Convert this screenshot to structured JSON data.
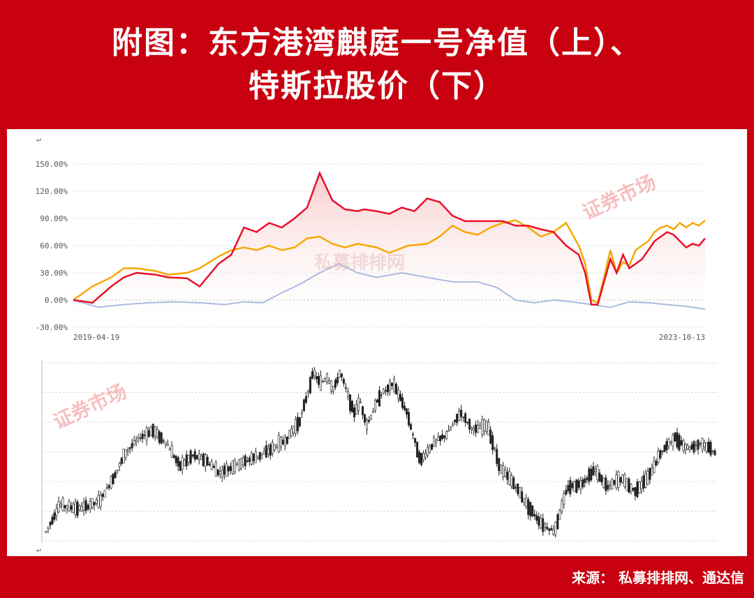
{
  "header": {
    "title_line1": "附图：东方港湾麒庭一号净值（上）、",
    "title_line2": "特斯拉股价（下）"
  },
  "footer": {
    "source": "来源： 私募排排网、通达信"
  },
  "watermarks": {
    "stamp": "证券市场",
    "site": "私募排排网"
  },
  "colors": {
    "frame": "#c8000f",
    "fund": "#e8102a",
    "benchmark": "#f5a800",
    "index": "#aabbe0",
    "candles": "#222222",
    "gridline": "#dddddd"
  },
  "chart_data": [
    {
      "type": "line",
      "x_start": "2019-04-19",
      "x_end": "2023-10-13",
      "x_tick_labels": [
        "2019-04-19",
        "2023-10-13"
      ],
      "y_tick_labels": [
        "150.00%",
        "120.00%",
        "90.00%",
        "60.00%",
        "30.00%",
        "0.00%",
        "-30.00%"
      ],
      "ylim": [
        -30,
        150
      ],
      "grid": true,
      "series": [
        {
          "role": "fund",
          "x": [
            0,
            0.03,
            0.06,
            0.08,
            0.1,
            0.13,
            0.15,
            0.18,
            0.2,
            0.23,
            0.25,
            0.27,
            0.29,
            0.31,
            0.33,
            0.35,
            0.37,
            0.39,
            0.41,
            0.43,
            0.45,
            0.46,
            0.48,
            0.5,
            0.52,
            0.54,
            0.56,
            0.58,
            0.6,
            0.62,
            0.64,
            0.66,
            0.68,
            0.7,
            0.72,
            0.74,
            0.76,
            0.78,
            0.8,
            0.81,
            0.82,
            0.83,
            0.84,
            0.85,
            0.86,
            0.87,
            0.88,
            0.89,
            0.9,
            0.91,
            0.92,
            0.93,
            0.94,
            0.95,
            0.96,
            0.97,
            0.98,
            0.99,
            1.0
          ],
          "values": [
            0,
            -3,
            15,
            25,
            30,
            28,
            25,
            24,
            15,
            40,
            50,
            80,
            75,
            85,
            80,
            90,
            102,
            140,
            110,
            100,
            98,
            100,
            98,
            95,
            102,
            98,
            112,
            108,
            93,
            87,
            87,
            87,
            87,
            82,
            82,
            78,
            75,
            60,
            50,
            30,
            -5,
            -5,
            20,
            45,
            30,
            50,
            35,
            40,
            45,
            55,
            65,
            70,
            75,
            72,
            65,
            58,
            62,
            60,
            68
          ]
        },
        {
          "role": "benchmark",
          "x": [
            0,
            0.03,
            0.06,
            0.08,
            0.1,
            0.13,
            0.15,
            0.18,
            0.2,
            0.23,
            0.25,
            0.27,
            0.29,
            0.31,
            0.33,
            0.35,
            0.37,
            0.39,
            0.41,
            0.43,
            0.45,
            0.48,
            0.5,
            0.53,
            0.56,
            0.58,
            0.6,
            0.62,
            0.64,
            0.66,
            0.68,
            0.7,
            0.72,
            0.74,
            0.76,
            0.78,
            0.8,
            0.81,
            0.82,
            0.83,
            0.84,
            0.85,
            0.86,
            0.87,
            0.88,
            0.89,
            0.9,
            0.91,
            0.92,
            0.93,
            0.94,
            0.95,
            0.96,
            0.97,
            0.98,
            0.99,
            1.0
          ],
          "values": [
            0,
            15,
            25,
            35,
            35,
            32,
            28,
            30,
            35,
            48,
            55,
            58,
            55,
            60,
            55,
            58,
            68,
            70,
            62,
            58,
            62,
            58,
            52,
            60,
            62,
            70,
            82,
            75,
            72,
            80,
            85,
            88,
            80,
            70,
            75,
            85,
            60,
            40,
            0,
            -3,
            25,
            55,
            30,
            42,
            38,
            55,
            60,
            65,
            75,
            80,
            82,
            78,
            85,
            80,
            85,
            82,
            88
          ]
        },
        {
          "role": "index",
          "x": [
            0,
            0.04,
            0.08,
            0.12,
            0.16,
            0.2,
            0.24,
            0.27,
            0.3,
            0.33,
            0.36,
            0.39,
            0.42,
            0.45,
            0.48,
            0.52,
            0.56,
            0.6,
            0.64,
            0.67,
            0.7,
            0.73,
            0.76,
            0.79,
            0.82,
            0.85,
            0.88,
            0.91,
            0.94,
            0.97,
            1.0
          ],
          "values": [
            0,
            -8,
            -5,
            -3,
            -2,
            -3,
            -5,
            -2,
            -3,
            8,
            18,
            30,
            40,
            30,
            25,
            30,
            25,
            20,
            20,
            14,
            0,
            -3,
            0,
            -2,
            -5,
            -8,
            -2,
            -3,
            -5,
            -7,
            -10
          ]
        }
      ]
    },
    {
      "type": "candlestick",
      "x_tick_labels": [],
      "y_tick_labels": [],
      "grid": true,
      "shape": {
        "x": [
          0,
          0.02,
          0.05,
          0.08,
          0.1,
          0.12,
          0.14,
          0.16,
          0.18,
          0.2,
          0.22,
          0.24,
          0.26,
          0.28,
          0.3,
          0.32,
          0.34,
          0.36,
          0.38,
          0.4,
          0.41,
          0.42,
          0.43,
          0.44,
          0.46,
          0.47,
          0.48,
          0.5,
          0.52,
          0.54,
          0.55,
          0.56,
          0.58,
          0.6,
          0.62,
          0.64,
          0.66,
          0.68,
          0.7,
          0.72,
          0.74,
          0.76,
          0.78,
          0.8,
          0.82,
          0.84,
          0.86,
          0.88,
          0.9,
          0.92,
          0.94,
          0.96,
          0.98,
          1.0
        ],
        "relative_price": [
          0.05,
          0.2,
          0.18,
          0.22,
          0.35,
          0.5,
          0.58,
          0.62,
          0.55,
          0.42,
          0.48,
          0.45,
          0.38,
          0.42,
          0.45,
          0.48,
          0.52,
          0.57,
          0.68,
          0.95,
          0.88,
          0.92,
          0.85,
          0.95,
          0.72,
          0.78,
          0.65,
          0.82,
          0.88,
          0.72,
          0.58,
          0.45,
          0.55,
          0.6,
          0.72,
          0.62,
          0.65,
          0.4,
          0.32,
          0.2,
          0.1,
          0.05,
          0.3,
          0.32,
          0.4,
          0.3,
          0.35,
          0.28,
          0.35,
          0.5,
          0.58,
          0.52,
          0.55,
          0.5
        ]
      }
    }
  ]
}
